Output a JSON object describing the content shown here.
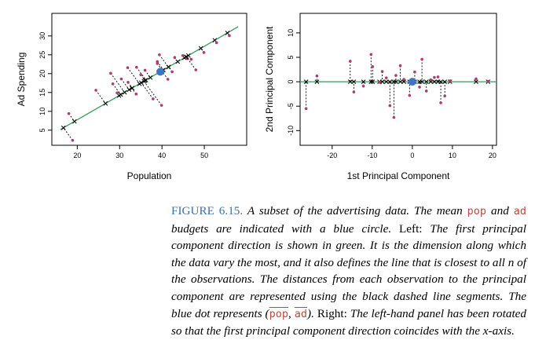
{
  "colors": {
    "accent": "#3f70a6",
    "highlight": "#b84a40",
    "pc_line": "#3a9a5c",
    "point": "#b03a70",
    "mean_dot": "#3e74c2",
    "axis": "#000000"
  },
  "chart_data": [
    {
      "type": "scatter",
      "panel": "left",
      "xlabel": "Population",
      "ylabel": "Ad Spending",
      "xlim": [
        14,
        60
      ],
      "ylim": [
        1,
        36
      ],
      "xticks": [
        "20",
        "30",
        "40",
        "50"
      ],
      "yticks": [
        "5",
        "10",
        "15",
        "20",
        "25",
        "30"
      ],
      "pc_line": {
        "slope": 0.65,
        "mean": [
          39.6,
          20.5
        ]
      },
      "mean_point": [
        39.6,
        20.5
      ],
      "points": [
        [
          18.9,
          2.3
        ],
        [
          18.0,
          9.4
        ],
        [
          24.4,
          15.6
        ],
        [
          27.9,
          20.1
        ],
        [
          28.4,
          17.3
        ],
        [
          29.4,
          14.9
        ],
        [
          30.4,
          18.6
        ],
        [
          32.0,
          17.7
        ],
        [
          34.0,
          21.7
        ],
        [
          35.0,
          19.7
        ],
        [
          36.0,
          20.9
        ],
        [
          37.9,
          13.3
        ],
        [
          38.9,
          22.7
        ],
        [
          38.9,
          23.2
        ],
        [
          39.9,
          11.6
        ],
        [
          39.4,
          25.0
        ],
        [
          41.4,
          18.5
        ],
        [
          43.0,
          24.3
        ],
        [
          44.9,
          24.8
        ],
        [
          46.0,
          24.0
        ],
        [
          46.9,
          23.8
        ],
        [
          48.0,
          21.0
        ],
        [
          49.9,
          25.6
        ],
        [
          52.9,
          28.2
        ],
        [
          55.9,
          30.1
        ],
        [
          42.4,
          20.5
        ],
        [
          33.9,
          14.6
        ],
        [
          31.9,
          21.6
        ]
      ]
    },
    {
      "type": "scatter",
      "panel": "right",
      "xlabel": "1st Principal Component",
      "ylabel": "2nd Principal Component",
      "xlim": [
        -28,
        21
      ],
      "ylim": [
        -13,
        14
      ],
      "xticks": [
        "-20",
        "-10",
        "0",
        "10",
        "20"
      ],
      "yticks": [
        "-10",
        "-5",
        "0",
        "5",
        "10"
      ],
      "mean_point": [
        0,
        0
      ],
      "points": [
        [
          -26.5,
          -5.5
        ],
        [
          -23.8,
          1.2
        ],
        [
          -15.5,
          4.2
        ],
        [
          -14.6,
          -2.1
        ],
        [
          -12.2,
          -0.9
        ],
        [
          -10.3,
          5.6
        ],
        [
          -9.9,
          3.1
        ],
        [
          -8.2,
          -0.1
        ],
        [
          -7.5,
          2.1
        ],
        [
          -6.5,
          0.8
        ],
        [
          -5.6,
          -4.9
        ],
        [
          -4.6,
          -7.3
        ],
        [
          -4.1,
          1.3
        ],
        [
          -3.0,
          3.3
        ],
        [
          -2.1,
          0.5
        ],
        [
          -0.7,
          -2.8
        ],
        [
          0.6,
          2.0
        ],
        [
          1.8,
          -1.1
        ],
        [
          2.4,
          4.6
        ],
        [
          3.5,
          -1.9
        ],
        [
          4.6,
          0.4
        ],
        [
          5.5,
          0.9
        ],
        [
          6.4,
          1.0
        ],
        [
          7.1,
          -4.3
        ],
        [
          8.1,
          -2.9
        ],
        [
          9.4,
          0.2
        ],
        [
          15.9,
          0.6
        ],
        [
          18.9,
          0.1
        ]
      ]
    }
  ],
  "caption": {
    "label": "FIGURE 6.15.",
    "t1": " A subset of the advertising data. The mean ",
    "pop": "pop",
    "t2": " and ",
    "ad": "ad",
    "t3": " budgets are indicated with a blue circle. ",
    "left": "Left:",
    "t4": " The first principal component direction is shown in green. It is the dimension along which the data vary the most, and it also defines the line that is closest to all ",
    "n": "n",
    "t5": " of the observations. The distances from each observation to the principal component are represented using the black dashed line segments. The blue dot represents (",
    "pop_bar": "pop",
    "comma": ", ",
    "ad_bar": "ad",
    "t6": "). ",
    "right": "Right:",
    "t7": " The left-hand panel has been rotated so that the first principal component direction coincides with the ",
    "xaxis": "x",
    "t8": "-axis."
  }
}
